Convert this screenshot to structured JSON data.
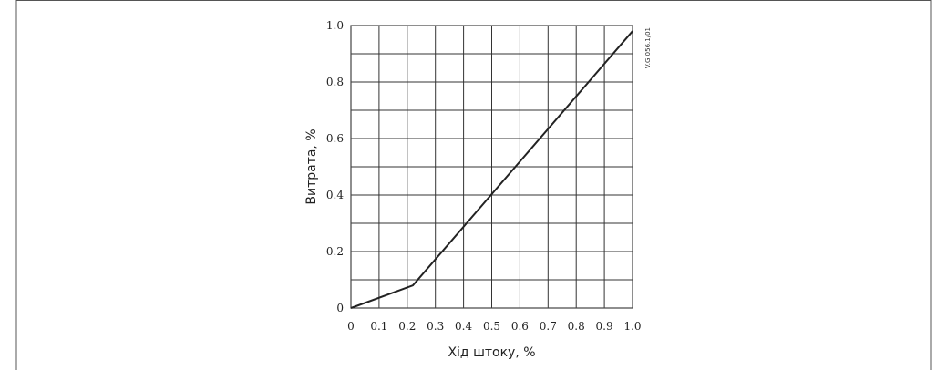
{
  "chart_data": {
    "type": "line",
    "xlabel": "Хід штоку, %",
    "ylabel": "Витрата, %",
    "xlim": [
      0,
      1.0
    ],
    "ylim": [
      0,
      1.0
    ],
    "x_ticks": [
      "0",
      "0.1",
      "0.2",
      "0.3",
      "0.4",
      "0.5",
      "0.6",
      "0.7",
      "0.8",
      "0.9",
      "1.0"
    ],
    "y_ticks": [
      "0",
      "0.2",
      "0.4",
      "0.6",
      "0.8",
      "1.0"
    ],
    "grid": true,
    "grid_minor_step": 0.1,
    "series": [
      {
        "x": [
          0,
          0.22,
          1.0
        ],
        "y": [
          0,
          0.08,
          0.98
        ]
      }
    ],
    "annotations": [
      {
        "text": "V.G.056.1/01",
        "position": "top-right"
      }
    ],
    "colors": {
      "line": "#222222",
      "grid": "#333333",
      "frame": "#444444"
    }
  }
}
